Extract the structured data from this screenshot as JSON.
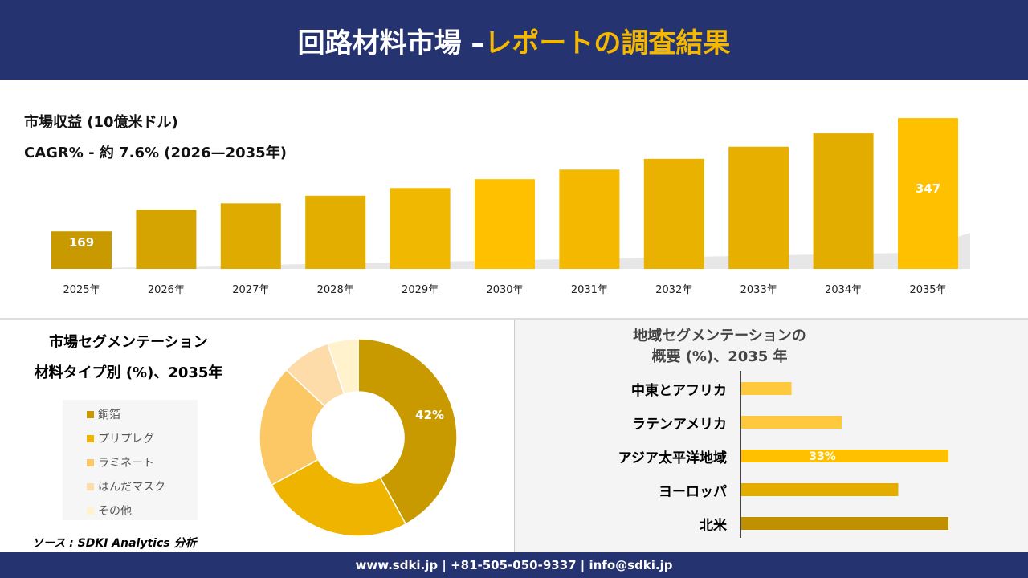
{
  "header": {
    "title_main": "回路材料市場 –",
    "title_accent": "レポートの調査結果"
  },
  "revenue": {
    "label": "市場収益 (10億米ドル)",
    "cagr": "CAGR% - 約 7.6% (2026—2035年)"
  },
  "chart_data": [
    {
      "type": "bar",
      "categories": [
        "2025年",
        "2026年",
        "2027年",
        "2028年",
        "2029年",
        "2030年",
        "2031年",
        "2032年",
        "2033年",
        "2034年",
        "2035年"
      ],
      "values": [
        169,
        203,
        213,
        225,
        237,
        251,
        266,
        283,
        302,
        323,
        347
      ],
      "data_labels": {
        "2025年": "169",
        "2035年": "347"
      },
      "colors": [
        "#c99a00",
        "#d6a400",
        "#dfab00",
        "#e3ae00",
        "#f0b800",
        "#ffc000",
        "#f5b800",
        "#eab200",
        "#e7b000",
        "#e3ad00",
        "#ffc000"
      ]
    },
    {
      "type": "pie",
      "title": "市場セグメンテーション 材料タイプ別 (%)、2035年",
      "title_line1": "市場セグメンテーション",
      "title_line2": "材料タイプ別 (%)、2035年",
      "categories": [
        "銅箔",
        "プリプレグ",
        "ラミネート",
        "はんだマスク",
        "その他"
      ],
      "values": [
        42,
        25,
        20,
        8,
        5
      ],
      "data_labels": [
        "42%"
      ],
      "colors": [
        "#c99a00",
        "#eeb400",
        "#fcc865",
        "#fddcaa",
        "#fff2cc"
      ],
      "legend": "left"
    },
    {
      "type": "bar",
      "orientation": "horizontal",
      "title_line1": "地域セグメンテーションの",
      "title_line2": "概要 (%)、2035 年",
      "categories": [
        "中東とアフリカ",
        "ラテンアメリカ",
        "アジア太平洋地域",
        "ヨーロッパ",
        "北米"
      ],
      "values": [
        8,
        16,
        33,
        25,
        33
      ],
      "data_labels": {
        "アジア太平洋地域": "33%"
      },
      "colors": [
        "#ffc83d",
        "#ffc83d",
        "#ffc000",
        "#e3ad00",
        "#c09000"
      ]
    }
  ],
  "source": "ソース : SDKI Analytics 分析",
  "footer": "www.sdki.jp | +81-505-050-9337 | info@sdki.jp"
}
